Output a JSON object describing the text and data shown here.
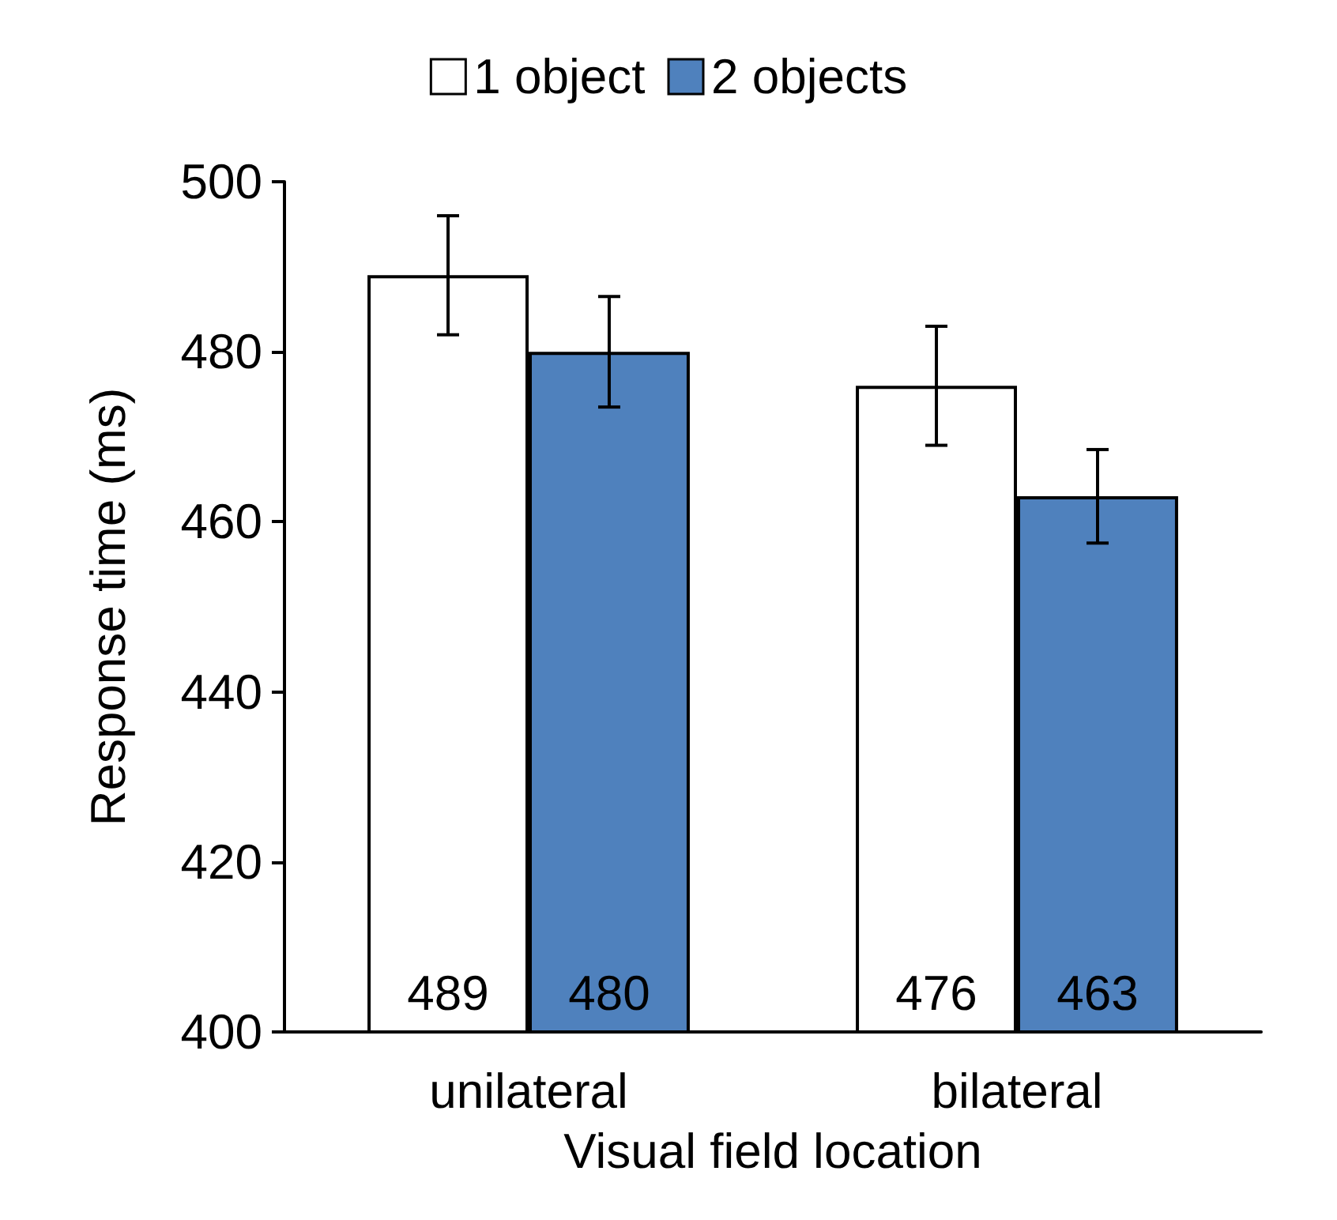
{
  "chart_data": {
    "type": "bar",
    "xlabel": "Visual field location",
    "ylabel": "Response time (ms)",
    "categories": [
      "unilateral",
      "bilateral"
    ],
    "series": [
      {
        "name": "1 object",
        "color": "#ffffff",
        "values": [
          489,
          476
        ],
        "errors": [
          7,
          7
        ]
      },
      {
        "name": "2 objects",
        "color": "#4f81bd",
        "values": [
          480,
          463
        ],
        "errors": [
          6.5,
          5.5
        ]
      }
    ],
    "ylim": [
      400,
      500
    ],
    "yticks": [
      400,
      420,
      440,
      460,
      480,
      500
    ],
    "grid": false,
    "legend": "top",
    "data_labels": true
  }
}
